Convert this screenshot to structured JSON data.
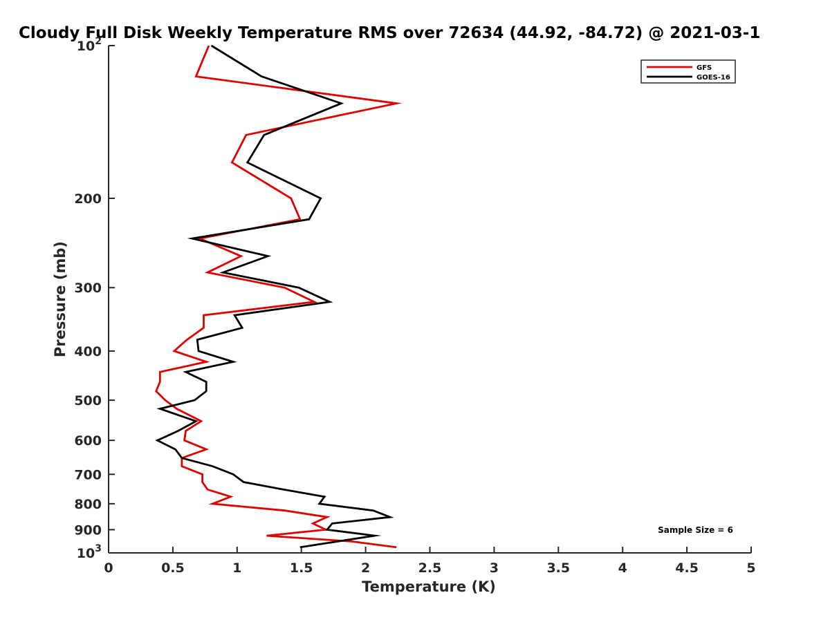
{
  "chart_data": {
    "type": "line",
    "title": "Cloudy Full Disk Weekly Temperature RMS over 72634 (44.92, -84.72) @ 2021-03-1",
    "xlabel": "Temperature (K)",
    "ylabel": "Pressure (mb)",
    "xlim": [
      0,
      5
    ],
    "ylim": [
      100,
      1000
    ],
    "yscale": "log",
    "y_reversed": true,
    "grid": false,
    "legend_position": "top-right",
    "x_ticks": [
      0,
      0.5,
      1,
      1.5,
      2,
      2.5,
      3,
      3.5,
      4,
      4.5,
      5
    ],
    "x_tick_labels": [
      "0",
      "0.5",
      "1",
      "1.5",
      "2",
      "2.5",
      "3",
      "3.5",
      "4",
      "4.5",
      "5"
    ],
    "y_ticks": [
      100,
      200,
      300,
      400,
      500,
      600,
      700,
      800,
      900,
      1000
    ],
    "y_tick_labels": [
      {
        "base": "10",
        "exp": "2"
      },
      {
        "base": "200",
        "exp": ""
      },
      {
        "base": "300",
        "exp": ""
      },
      {
        "base": "400",
        "exp": ""
      },
      {
        "base": "500",
        "exp": ""
      },
      {
        "base": "600",
        "exp": ""
      },
      {
        "base": "700",
        "exp": ""
      },
      {
        "base": "800",
        "exp": ""
      },
      {
        "base": "900",
        "exp": ""
      },
      {
        "base": "10",
        "exp": "3"
      }
    ],
    "annotation": "Sample Size = 6",
    "series": [
      {
        "name": "GFS",
        "color": "#e00000",
        "points": [
          [
            0.78,
            100
          ],
          [
            0.68,
            115
          ],
          [
            2.24,
            130
          ],
          [
            1.07,
            150
          ],
          [
            0.96,
            170
          ],
          [
            1.42,
            200
          ],
          [
            1.49,
            220
          ],
          [
            0.71,
            240
          ],
          [
            1.03,
            260
          ],
          [
            0.77,
            280
          ],
          [
            1.37,
            300
          ],
          [
            1.6,
            320
          ],
          [
            0.74,
            340
          ],
          [
            0.74,
            360
          ],
          [
            0.61,
            380
          ],
          [
            0.51,
            400
          ],
          [
            0.76,
            420
          ],
          [
            0.4,
            440
          ],
          [
            0.4,
            460
          ],
          [
            0.37,
            480
          ],
          [
            0.44,
            500
          ],
          [
            0.53,
            520
          ],
          [
            0.72,
            550
          ],
          [
            0.6,
            575
          ],
          [
            0.59,
            600
          ],
          [
            0.76,
            625
          ],
          [
            0.57,
            650
          ],
          [
            0.57,
            675
          ],
          [
            0.73,
            700
          ],
          [
            0.73,
            725
          ],
          [
            0.77,
            750
          ],
          [
            0.95,
            775
          ],
          [
            0.81,
            800
          ],
          [
            1.37,
            825
          ],
          [
            1.7,
            850
          ],
          [
            1.59,
            875
          ],
          [
            1.69,
            900
          ],
          [
            1.23,
            925
          ],
          [
            1.9,
            950
          ],
          [
            2.24,
            975
          ]
        ]
      },
      {
        "name": "GOES-16",
        "color": "#000000",
        "points": [
          [
            0.8,
            100
          ],
          [
            1.19,
            115
          ],
          [
            1.81,
            130
          ],
          [
            1.21,
            150
          ],
          [
            1.08,
            170
          ],
          [
            1.65,
            200
          ],
          [
            1.56,
            220
          ],
          [
            0.65,
            240
          ],
          [
            1.24,
            260
          ],
          [
            0.89,
            280
          ],
          [
            1.48,
            300
          ],
          [
            1.72,
            320
          ],
          [
            0.98,
            340
          ],
          [
            1.04,
            360
          ],
          [
            0.69,
            380
          ],
          [
            0.7,
            400
          ],
          [
            0.97,
            420
          ],
          [
            0.6,
            440
          ],
          [
            0.76,
            460
          ],
          [
            0.76,
            480
          ],
          [
            0.67,
            500
          ],
          [
            0.4,
            520
          ],
          [
            0.68,
            550
          ],
          [
            0.54,
            575
          ],
          [
            0.38,
            600
          ],
          [
            0.52,
            625
          ],
          [
            0.57,
            650
          ],
          [
            0.81,
            675
          ],
          [
            0.97,
            700
          ],
          [
            1.05,
            725
          ],
          [
            1.36,
            750
          ],
          [
            1.68,
            775
          ],
          [
            1.64,
            800
          ],
          [
            2.06,
            825
          ],
          [
            2.19,
            850
          ],
          [
            1.74,
            875
          ],
          [
            1.7,
            900
          ],
          [
            2.07,
            925
          ],
          [
            1.49,
            975
          ]
        ]
      }
    ]
  }
}
